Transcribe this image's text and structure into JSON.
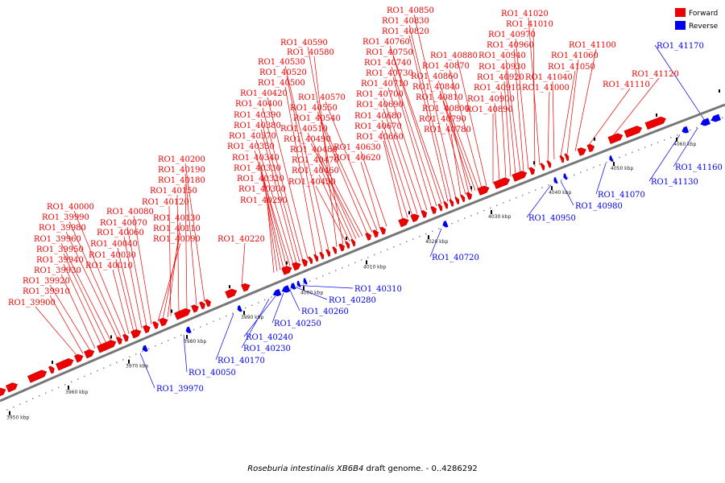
{
  "caption": {
    "organism": "Roseburia intestinalis XB6B4",
    "rest": " draft genome. - 0..4286292"
  },
  "legend": [
    {
      "label": "Forward",
      "color": "#ee0000"
    },
    {
      "label": "Reverse",
      "color": "#0000ee"
    }
  ],
  "colors": {
    "forward": "#ee0000",
    "reverse": "#0000ee",
    "backbone": "#777777"
  },
  "scale_ticks": [
    "3950 kbp",
    "3960 kbp",
    "3970 kbp",
    "3980 kbp",
    "3990 kbp",
    "4000 kbp",
    "4010 kbp",
    "4020 kbp",
    "4030 kbp",
    "4040 kbp",
    "4050 kbp",
    "4060 kbp"
  ],
  "forward_labels": [
    "RO1_39900",
    "RO1_39910",
    "RO1_39920",
    "RO1_39930",
    "RO1_39940",
    "RO1_39950",
    "RO1_39960",
    "RO1_39980",
    "RO1_39990",
    "RO1_40000",
    "RO1_40010",
    "RO1_40030",
    "RO1_40040",
    "RO1_40060",
    "RO1_40070",
    "RO1_40080",
    "RO1_40090",
    "RO1_40110",
    "RO1_40130",
    "RO1_40120",
    "RO1_40150",
    "RO1_40180",
    "RO1_40190",
    "RO1_40200",
    "RO1_40220",
    "RO1_40290",
    "RO1_40300",
    "RO1_40320",
    "RO1_40330",
    "RO1_40340",
    "RO1_40350",
    "RO1_40370",
    "RO1_40380",
    "RO1_40390",
    "RO1_40400",
    "RO1_40420",
    "RO1_40500",
    "RO1_40520",
    "RO1_40530",
    "RO1_40580",
    "RO1_40590",
    "RO1_40450",
    "RO1_40460",
    "RO1_40470",
    "RO1_40480",
    "RO1_40490",
    "RO1_40510",
    "RO1_40540",
    "RO1_40550",
    "RO1_40570",
    "RO1_40620",
    "RO1_40630",
    "RO1_40660",
    "RO1_40670",
    "RO1_40680",
    "RO1_40690",
    "RO1_40700",
    "RO1_40710",
    "RO1_40730",
    "RO1_40740",
    "RO1_40750",
    "RO1_40760",
    "RO1_40820",
    "RO1_40830",
    "RO1_40850",
    "RO1_40780",
    "RO1_40790",
    "RO1_40800",
    "RO1_40810",
    "RO1_40840",
    "RO1_40860",
    "RO1_40870",
    "RO1_40880",
    "RO1_40890",
    "RO1_40900",
    "RO1_40910",
    "RO1_40920",
    "RO1_40930",
    "RO1_40940",
    "RO1_40960",
    "RO1_40970",
    "RO1_41010",
    "RO1_41020",
    "RO1_41000",
    "RO1_41040",
    "RO1_41050",
    "RO1_41060",
    "RO1_41100",
    "RO1_41110",
    "RO1_41120"
  ],
  "reverse_labels": [
    "RO1_39970",
    "RO1_40050",
    "RO1_40170",
    "RO1_40230",
    "RO1_40240",
    "RO1_40250",
    "RO1_40260",
    "RO1_40280",
    "RO1_40310",
    "RO1_40720",
    "RO1_40950",
    "RO1_40980",
    "RO1_41070",
    "RO1_41130",
    "RO1_41160",
    "RO1_41170"
  ]
}
